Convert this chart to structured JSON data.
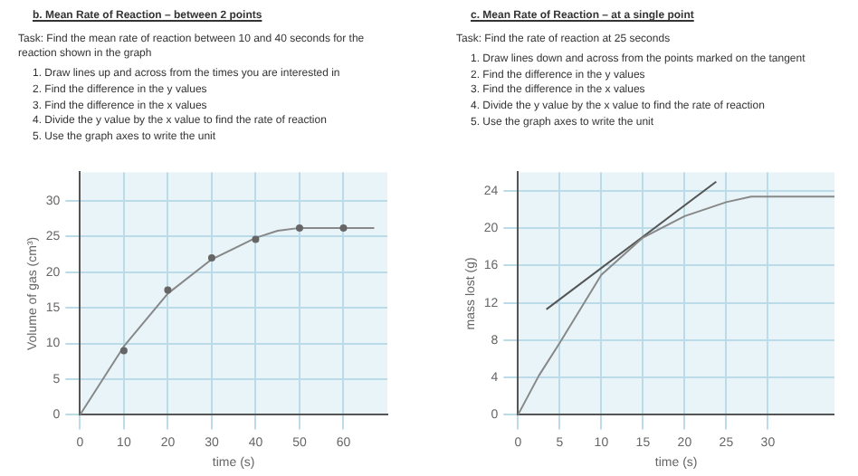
{
  "chart_data": [
    {
      "type": "line",
      "title": "b. Mean Rate of Reaction – between 2 points",
      "subtitle": "Task: Find the mean rate of reaction between 10 and 40 seconds for the reaction shown in the graph",
      "annotations": [
        "1. Draw lines up and across from the times you are interested in",
        "2. Find the difference in the y values",
        "3. Find the difference in the x values",
        "4. Divide the y value by the x value to find the rate of reaction",
        "5. Use the graph axes to write the unit"
      ],
      "xlabel": "time (s)",
      "ylabel": "Volume of gas (cm³)",
      "xlim": [
        0,
        70
      ],
      "ylim": [
        0,
        34
      ],
      "xticks": [
        0,
        10,
        20,
        30,
        40,
        50,
        60
      ],
      "yticks": [
        0,
        5,
        10,
        15,
        20,
        25,
        30
      ],
      "grid": true,
      "series": [
        {
          "type": "scatter",
          "marker": "circle",
          "color": "#666666",
          "x": [
            10,
            20,
            30,
            40,
            50,
            60
          ],
          "values": [
            9,
            17.5,
            22,
            24.6,
            26.2,
            26.2
          ]
        },
        {
          "color": "#888888",
          "x": [
            0,
            10,
            20,
            30,
            40,
            45,
            50,
            60,
            67
          ],
          "values": [
            0,
            9.6,
            17,
            21.8,
            24.8,
            25.8,
            26.2,
            26.2,
            26.2
          ]
        }
      ]
    },
    {
      "type": "line",
      "title": "c. Mean Rate of Reaction – at a single point",
      "subtitle": "Task: Find the rate of reaction at 25 seconds",
      "annotations": [
        "1. Draw lines down and across from the points marked on the tangent",
        "2. Find the difference in the y values",
        "3. Find the difference in the x values",
        "4. Divide the y value by the x value to find the rate of reaction",
        "5. Use the graph axes to write the unit"
      ],
      "xlabel": "time (s)",
      "ylabel": "mass lost (g)",
      "xlim": [
        0,
        38
      ],
      "ylim": [
        0,
        26
      ],
      "xticks": [
        0,
        5,
        10,
        15,
        20,
        25,
        30
      ],
      "yticks": [
        0,
        4,
        8,
        12,
        16,
        20,
        24
      ],
      "grid": true,
      "series": [
        {
          "color": "#888888",
          "x": [
            0,
            2.5,
            5,
            10,
            15,
            20,
            25,
            28,
            38
          ],
          "values": [
            0,
            4.2,
            7.7,
            15,
            19,
            21.3,
            22.8,
            23.4,
            23.4
          ]
        },
        {
          "color": "#555555",
          "x": [
            3.4,
            23.8
          ],
          "values": [
            11.3,
            25
          ]
        }
      ]
    }
  ]
}
